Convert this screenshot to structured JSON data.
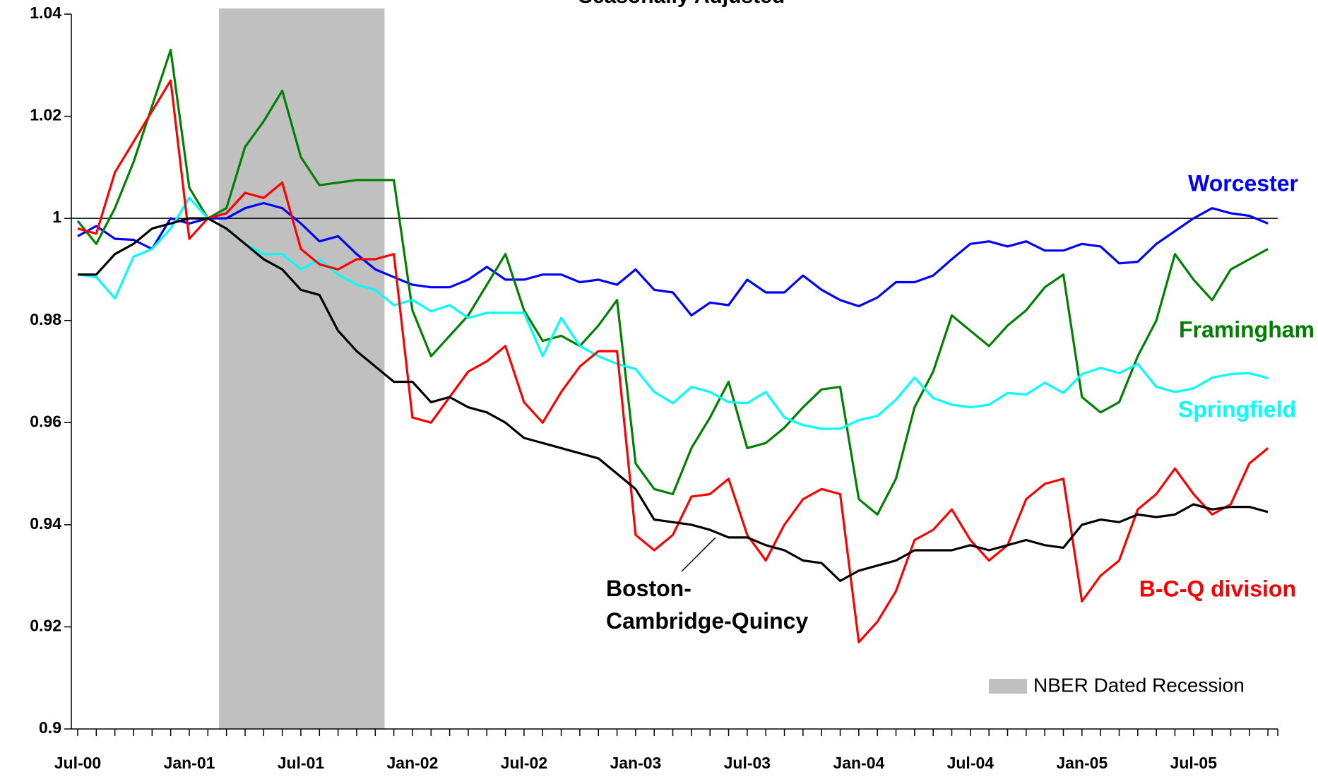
{
  "chart_data": {
    "type": "line",
    "subtitle": "Seasonally Adjusted",
    "categories": [
      "Jul-00",
      null,
      null,
      null,
      null,
      null,
      "Jan-01",
      null,
      null,
      null,
      null,
      null,
      "Jul-01",
      null,
      null,
      null,
      null,
      null,
      "Jan-02",
      null,
      null,
      null,
      null,
      null,
      "Jul-02",
      null,
      null,
      null,
      null,
      null,
      "Jan-03",
      null,
      null,
      null,
      null,
      null,
      "Jul-03",
      null,
      null,
      null,
      null,
      null,
      "Jan-04",
      null,
      null,
      null,
      null,
      null,
      "Jul-04",
      null,
      null,
      null,
      null,
      null,
      "Jan-05",
      null,
      null,
      null,
      null,
      null,
      "Jul-05",
      null,
      null,
      null,
      null
    ],
    "series": [
      {
        "name": "Worcester",
        "color": "#0000ff",
        "values": [
          0.9965,
          0.9985,
          0.996,
          0.9958,
          0.994,
          1.0,
          0.999,
          1.0,
          1.0,
          1.002,
          1.003,
          1.002,
          0.999,
          0.9955,
          0.9965,
          0.993,
          0.99,
          0.9885,
          0.987,
          0.9865,
          0.9865,
          0.988,
          0.9905,
          0.988,
          0.988,
          0.989,
          0.989,
          0.9875,
          0.988,
          0.987,
          0.99,
          0.986,
          0.9855,
          0.981,
          0.9835,
          0.983,
          0.988,
          0.9855,
          0.9855,
          0.9888,
          0.986,
          0.984,
          0.9828,
          0.9845,
          0.9875,
          0.9875,
          0.9888,
          0.992,
          0.995,
          0.9955,
          0.9945,
          0.9955,
          0.9937,
          0.9937,
          0.995,
          0.9945,
          0.9912,
          0.9915,
          0.995,
          0.9975,
          1.0,
          1.002,
          1.001,
          1.0005,
          0.999
        ]
      },
      {
        "name": "Framingham",
        "color": "#008000",
        "values": [
          0.9995,
          0.995,
          1.002,
          1.011,
          1.022,
          1.033,
          1.006,
          1.0,
          1.002,
          1.014,
          1.019,
          1.025,
          1.012,
          1.0065,
          1.007,
          1.0075,
          1.0075,
          1.0075,
          0.982,
          0.973,
          0.977,
          0.981,
          0.987,
          0.993,
          0.982,
          0.976,
          0.977,
          0.975,
          0.979,
          0.984,
          0.952,
          0.947,
          0.946,
          0.955,
          0.961,
          0.968,
          0.955,
          0.956,
          0.959,
          0.963,
          0.9665,
          0.967,
          0.945,
          0.942,
          0.949,
          0.963,
          0.97,
          0.981,
          0.978,
          0.975,
          0.979,
          0.982,
          0.9865,
          0.989,
          0.965,
          0.962,
          0.964,
          0.973,
          0.98,
          0.993,
          0.988,
          0.984,
          0.99,
          0.992,
          0.994
        ]
      },
      {
        "name": "Springfield",
        "color": "#00ffff",
        "values": [
          0.989,
          0.9885,
          0.9843,
          0.9925,
          0.994,
          0.998,
          1.004,
          1.0,
          0.998,
          0.995,
          0.993,
          0.993,
          0.99,
          0.992,
          0.989,
          0.987,
          0.986,
          0.983,
          0.984,
          0.9818,
          0.983,
          0.9805,
          0.9815,
          0.9815,
          0.9815,
          0.973,
          0.9805,
          0.975,
          0.973,
          0.9715,
          0.9705,
          0.966,
          0.9638,
          0.967,
          0.966,
          0.964,
          0.9638,
          0.966,
          0.961,
          0.9595,
          0.9588,
          0.9588,
          0.9605,
          0.9613,
          0.9645,
          0.9688,
          0.9648,
          0.9635,
          0.963,
          0.9635,
          0.9658,
          0.9655,
          0.9678,
          0.9658,
          0.9695,
          0.9707,
          0.9697,
          0.9715,
          0.967,
          0.966,
          0.9667,
          0.9688,
          0.9695,
          0.9697,
          0.9687
        ]
      },
      {
        "name": "B-C-Q division",
        "color": "#ff0000",
        "values": [
          0.998,
          0.997,
          1.009,
          1.015,
          1.021,
          1.027,
          0.996,
          1.0,
          1.001,
          1.005,
          1.004,
          1.007,
          0.994,
          0.991,
          0.99,
          0.992,
          0.992,
          0.993,
          0.961,
          0.96,
          0.965,
          0.97,
          0.972,
          0.975,
          0.964,
          0.96,
          0.966,
          0.971,
          0.974,
          0.974,
          0.938,
          0.935,
          0.938,
          0.9455,
          0.946,
          0.949,
          0.938,
          0.933,
          0.94,
          0.945,
          0.947,
          0.946,
          0.917,
          0.921,
          0.927,
          0.937,
          0.939,
          0.943,
          0.937,
          0.933,
          0.936,
          0.945,
          0.948,
          0.949,
          0.925,
          0.93,
          0.933,
          0.943,
          0.946,
          0.951,
          0.946,
          0.942,
          0.944,
          0.952,
          0.955
        ]
      },
      {
        "name": "Boston-Cambridge-Quincy",
        "color": "#000000",
        "values": [
          0.989,
          0.989,
          0.993,
          0.995,
          0.998,
          0.999,
          1.0,
          1.0,
          0.998,
          0.995,
          0.992,
          0.99,
          0.986,
          0.985,
          0.978,
          0.974,
          0.971,
          0.968,
          0.968,
          0.964,
          0.965,
          0.963,
          0.962,
          0.96,
          0.957,
          0.956,
          0.955,
          0.954,
          0.953,
          0.95,
          0.947,
          0.941,
          0.9405,
          0.94,
          0.939,
          0.9375,
          0.9375,
          0.936,
          0.935,
          0.933,
          0.9325,
          0.929,
          0.931,
          0.932,
          0.933,
          0.935,
          0.935,
          0.935,
          0.936,
          0.935,
          0.936,
          0.937,
          0.936,
          0.9355,
          0.94,
          0.941,
          0.9405,
          0.942,
          0.9415,
          0.942,
          0.944,
          0.943,
          0.9435,
          0.9435,
          0.9425
        ]
      }
    ],
    "ylim": [
      0.9,
      1.04
    ],
    "yticks": [
      0.9,
      0.92,
      0.94,
      0.96,
      0.98,
      1,
      1.02,
      1.04
    ],
    "reference_line": 1,
    "recession": {
      "label": "NBER Dated Recession",
      "color": "#c0c0c0",
      "range": [
        7.6,
        16.5
      ]
    }
  }
}
